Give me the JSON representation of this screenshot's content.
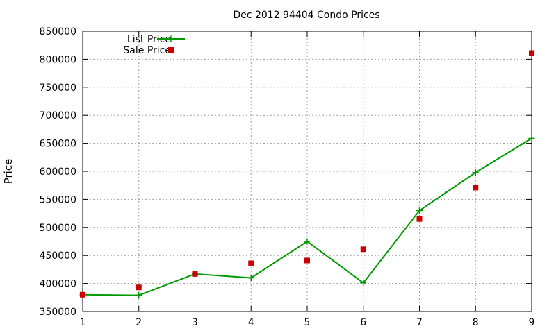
{
  "chart_data": {
    "type": "line",
    "title": "Dec 2012 94404 Condo Prices",
    "xlabel": "",
    "ylabel": "Price",
    "x": [
      1,
      2,
      3,
      4,
      5,
      6,
      7,
      8,
      9
    ],
    "xlim": [
      1,
      9
    ],
    "ylim": [
      350000,
      850000
    ],
    "yticks": [
      350000,
      400000,
      450000,
      500000,
      550000,
      600000,
      650000,
      700000,
      750000,
      800000,
      850000
    ],
    "xticks": [
      1,
      2,
      3,
      4,
      5,
      6,
      7,
      8,
      9
    ],
    "grid": true,
    "legend_position": "top-left",
    "series": [
      {
        "name": "List Price",
        "style": "line-with-plus-markers",
        "color": "#009900",
        "values": [
          380000,
          379000,
          417000,
          410000,
          475000,
          401000,
          530000,
          598000,
          659000
        ]
      },
      {
        "name": "Sale Price",
        "style": "square-markers",
        "color": "#cc0000",
        "values": [
          380000,
          393000,
          417000,
          436000,
          441000,
          461000,
          515000,
          571000,
          811000
        ]
      }
    ]
  }
}
